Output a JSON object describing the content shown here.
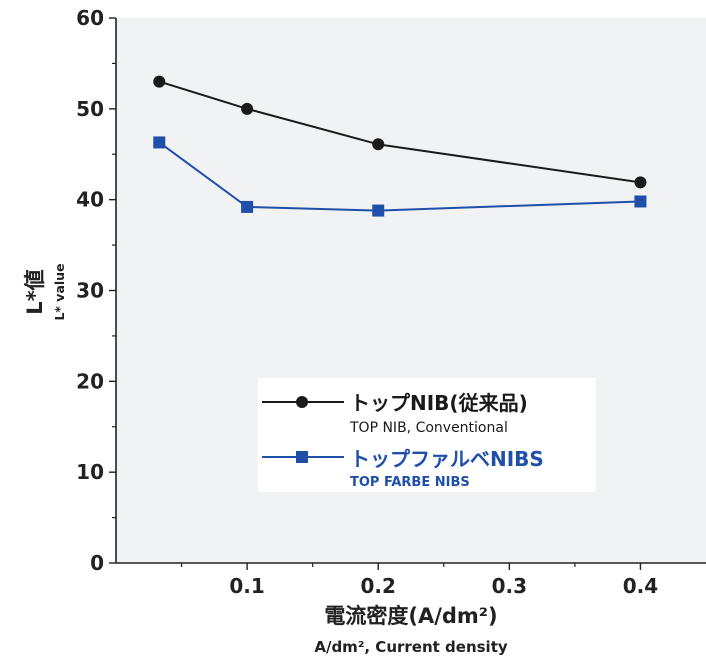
{
  "chart_data": {
    "type": "line",
    "ylabel": "L*値",
    "ylabel_sub": "L* value",
    "xlabel": "電流密度(A/dm²)",
    "xlabel_sub": "A/dm², Current density",
    "xlim": [
      0,
      0.45
    ],
    "ylim": [
      0,
      60
    ],
    "xticks": [
      0.1,
      0.2,
      0.3,
      0.4
    ],
    "xtick_labels": [
      "0.1",
      "0.2",
      "0.3",
      "0.4"
    ],
    "yticks": [
      0,
      10,
      20,
      30,
      40,
      50,
      60
    ],
    "ytick_labels": [
      "0",
      "10",
      "20",
      "30",
      "40",
      "50",
      "60"
    ],
    "legend_position": "lower-center",
    "series": [
      {
        "name": "トップNIB(従来品)",
        "name_sub": "TOP NIB, Conventional",
        "color": "#1a1a1a",
        "marker": "circle",
        "x": [
          0.033,
          0.1,
          0.2,
          0.4
        ],
        "y": [
          53.0,
          50.0,
          46.1,
          41.9
        ]
      },
      {
        "name": "トップファルベNIBS",
        "name_sub": "TOP FARBE NIBS",
        "color": "#1f4fa8",
        "marker": "square",
        "x": [
          0.033,
          0.1,
          0.2,
          0.4
        ],
        "y": [
          46.3,
          39.2,
          38.8,
          39.8
        ]
      }
    ]
  }
}
